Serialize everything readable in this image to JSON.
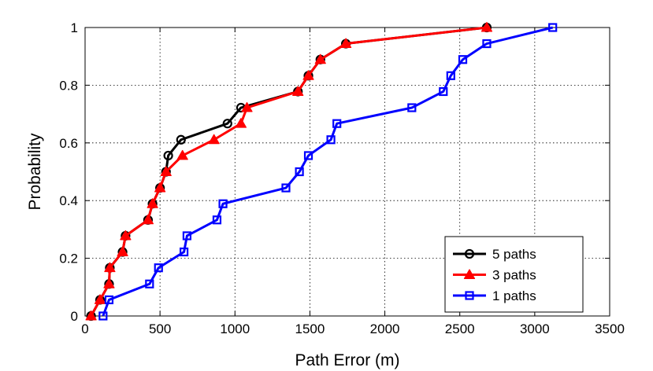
{
  "chart_data": {
    "type": "line",
    "xlabel": "Path Error (m)",
    "ylabel": "Probability",
    "xlim": [
      0,
      3500
    ],
    "ylim": [
      0,
      1
    ],
    "xticks": [
      0,
      500,
      1000,
      1500,
      2000,
      2500,
      3000,
      3500
    ],
    "yticks": [
      0,
      0.2,
      0.4,
      0.6,
      0.8,
      1
    ],
    "xtick_labels": [
      "0",
      "500",
      "1000",
      "1500",
      "2000",
      "2500",
      "3000",
      "3500"
    ],
    "ytick_labels": [
      "0",
      "0.2",
      "0.4",
      "0.6",
      "0.8",
      "1"
    ],
    "grid": true,
    "legend_position": "bottom-right",
    "series": [
      {
        "name": "5 paths",
        "color": "#000000",
        "marker": "circle",
        "x": [
          40,
          100,
          160,
          165,
          250,
          270,
          420,
          450,
          500,
          540,
          555,
          640,
          950,
          1040,
          1420,
          1490,
          1570,
          1740,
          2680
        ],
        "y": [
          0,
          0.056,
          0.111,
          0.167,
          0.222,
          0.278,
          0.333,
          0.389,
          0.444,
          0.5,
          0.556,
          0.611,
          0.667,
          0.722,
          0.778,
          0.833,
          0.889,
          0.944,
          1.0
        ]
      },
      {
        "name": "3 paths",
        "color": "#ff0000",
        "marker": "triangle",
        "x": [
          40,
          100,
          160,
          165,
          250,
          270,
          420,
          450,
          500,
          540,
          650,
          860,
          1040,
          1080,
          1420,
          1490,
          1570,
          1740,
          2680
        ],
        "y": [
          0,
          0.056,
          0.111,
          0.167,
          0.222,
          0.278,
          0.333,
          0.389,
          0.444,
          0.5,
          0.556,
          0.611,
          0.667,
          0.722,
          0.778,
          0.833,
          0.889,
          0.944,
          1.0
        ]
      },
      {
        "name": "1 paths",
        "color": "#0000ff",
        "marker": "square",
        "x": [
          120,
          160,
          430,
          490,
          660,
          680,
          880,
          920,
          1340,
          1430,
          1490,
          1640,
          1680,
          2180,
          2390,
          2440,
          2520,
          2680,
          3120
        ],
        "y": [
          0,
          0.056,
          0.111,
          0.167,
          0.222,
          0.278,
          0.333,
          0.389,
          0.444,
          0.5,
          0.556,
          0.611,
          0.667,
          0.722,
          0.778,
          0.833,
          0.889,
          0.944,
          1.0
        ]
      }
    ]
  }
}
